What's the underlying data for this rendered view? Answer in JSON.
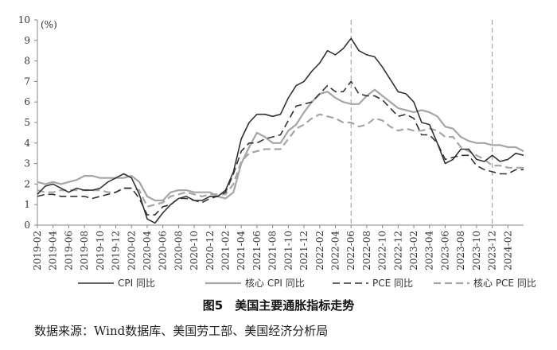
{
  "caption": "图5　美国主要通胀指标走势",
  "source": "数据来源：Wind数据库、美国劳工部、美国经济分析局",
  "chart_data": {
    "type": "line",
    "title": "",
    "unit_label": "(%)",
    "xlabel": "",
    "ylabel": "",
    "ylim": [
      0,
      10
    ],
    "yticks": [
      0,
      1,
      2,
      3,
      4,
      5,
      6,
      7,
      8,
      9,
      10
    ],
    "grid": false,
    "legend_position": "bottom",
    "x_tick_labels": [
      "2019-02",
      "2019-04",
      "2019-06",
      "2019-08",
      "2019-10",
      "2019-12",
      "2020-02",
      "2020-04",
      "2020-06",
      "2020-08",
      "2020-10",
      "2020-12",
      "2021-02",
      "2021-04",
      "2021-06",
      "2021-08",
      "2021-10",
      "2021-12",
      "2022-02",
      "2022-04",
      "2022-06",
      "2022-08",
      "2022-10",
      "2022-12",
      "2023-02",
      "2023-04",
      "2023-06",
      "2023-08",
      "2023-10",
      "2023-12",
      "2024-02"
    ],
    "vertical_markers": [
      "2022-06",
      "2023-12"
    ],
    "months": [
      "2019-02",
      "2019-03",
      "2019-04",
      "2019-05",
      "2019-06",
      "2019-07",
      "2019-08",
      "2019-09",
      "2019-10",
      "2019-11",
      "2019-12",
      "2020-01",
      "2020-02",
      "2020-03",
      "2020-04",
      "2020-05",
      "2020-06",
      "2020-07",
      "2020-08",
      "2020-09",
      "2020-10",
      "2020-11",
      "2020-12",
      "2021-01",
      "2021-02",
      "2021-03",
      "2021-04",
      "2021-05",
      "2021-06",
      "2021-07",
      "2021-08",
      "2021-09",
      "2021-10",
      "2021-11",
      "2021-12",
      "2022-01",
      "2022-02",
      "2022-03",
      "2022-04",
      "2022-05",
      "2022-06",
      "2022-07",
      "2022-08",
      "2022-09",
      "2022-10",
      "2022-11",
      "2022-12",
      "2023-01",
      "2023-02",
      "2023-03",
      "2023-04",
      "2023-05",
      "2023-06",
      "2023-07",
      "2023-08",
      "2023-09",
      "2023-10",
      "2023-11",
      "2023-12",
      "2024-01",
      "2024-02",
      "2024-03",
      "2024-04"
    ],
    "series": [
      {
        "name": "CPI 同比",
        "color": "#333333",
        "stroke": "solid",
        "width": 1.6,
        "values": [
          1.5,
          1.9,
          2.0,
          1.8,
          1.6,
          1.8,
          1.7,
          1.7,
          1.8,
          2.1,
          2.3,
          2.5,
          2.3,
          1.5,
          0.3,
          0.1,
          0.6,
          1.0,
          1.3,
          1.4,
          1.2,
          1.2,
          1.4,
          1.4,
          1.7,
          2.6,
          4.2,
          5.0,
          5.4,
          5.4,
          5.3,
          5.4,
          6.2,
          6.8,
          7.0,
          7.5,
          7.9,
          8.5,
          8.3,
          8.6,
          9.1,
          8.5,
          8.3,
          8.2,
          7.7,
          7.1,
          6.5,
          6.4,
          6.0,
          5.0,
          4.9,
          4.0,
          3.0,
          3.2,
          3.7,
          3.7,
          3.2,
          3.1,
          3.4,
          3.1,
          3.2,
          3.5,
          3.4
        ]
      },
      {
        "name": "核心 CPI 同比",
        "color": "#a6a6a6",
        "stroke": "solid",
        "width": 2.2,
        "values": [
          2.1,
          2.0,
          2.1,
          2.0,
          2.1,
          2.2,
          2.4,
          2.4,
          2.3,
          2.3,
          2.3,
          2.3,
          2.4,
          2.1,
          1.4,
          1.2,
          1.2,
          1.6,
          1.7,
          1.7,
          1.6,
          1.6,
          1.6,
          1.4,
          1.3,
          1.6,
          3.0,
          3.8,
          4.5,
          4.3,
          4.0,
          4.0,
          4.6,
          4.9,
          5.5,
          6.0,
          6.4,
          6.5,
          6.2,
          6.0,
          5.9,
          5.9,
          6.3,
          6.6,
          6.3,
          6.0,
          5.7,
          5.6,
          5.5,
          5.6,
          5.5,
          5.3,
          4.8,
          4.7,
          4.3,
          4.1,
          4.0,
          4.0,
          3.9,
          3.9,
          3.8,
          3.8,
          3.6
        ]
      },
      {
        "name": "PCE 同比",
        "color": "#333333",
        "stroke": "dashed",
        "width": 1.6,
        "values": [
          1.4,
          1.5,
          1.5,
          1.4,
          1.4,
          1.4,
          1.4,
          1.3,
          1.4,
          1.5,
          1.6,
          1.8,
          1.8,
          1.3,
          0.5,
          0.5,
          0.9,
          1.0,
          1.3,
          1.3,
          1.2,
          1.1,
          1.3,
          1.4,
          1.6,
          2.5,
          3.6,
          4.0,
          4.0,
          4.2,
          4.3,
          4.4,
          5.1,
          5.8,
          5.9,
          6.0,
          6.4,
          6.8,
          6.5,
          6.5,
          7.0,
          6.4,
          6.3,
          6.3,
          6.1,
          5.7,
          5.3,
          5.4,
          5.2,
          4.4,
          4.4,
          4.0,
          3.2,
          3.3,
          3.4,
          3.4,
          2.9,
          2.7,
          2.6,
          2.5,
          2.5,
          2.7,
          2.7
        ]
      },
      {
        "name": "核心 PCE 同比",
        "color": "#a6a6a6",
        "stroke": "dashed",
        "width": 2.2,
        "values": [
          1.7,
          1.6,
          1.6,
          1.7,
          1.7,
          1.7,
          1.7,
          1.7,
          1.7,
          1.6,
          1.6,
          1.8,
          1.8,
          1.7,
          0.9,
          1.0,
          1.1,
          1.4,
          1.5,
          1.6,
          1.5,
          1.4,
          1.5,
          1.5,
          1.5,
          2.0,
          3.1,
          3.5,
          3.6,
          3.7,
          3.7,
          3.7,
          4.2,
          4.7,
          4.9,
          5.2,
          5.4,
          5.3,
          5.2,
          5.0,
          5.0,
          4.8,
          4.9,
          5.2,
          5.1,
          4.8,
          4.6,
          4.7,
          4.6,
          4.6,
          4.7,
          4.6,
          4.3,
          4.3,
          3.8,
          3.6,
          3.4,
          3.2,
          2.9,
          2.9,
          2.8,
          2.8,
          2.8
        ]
      }
    ]
  }
}
